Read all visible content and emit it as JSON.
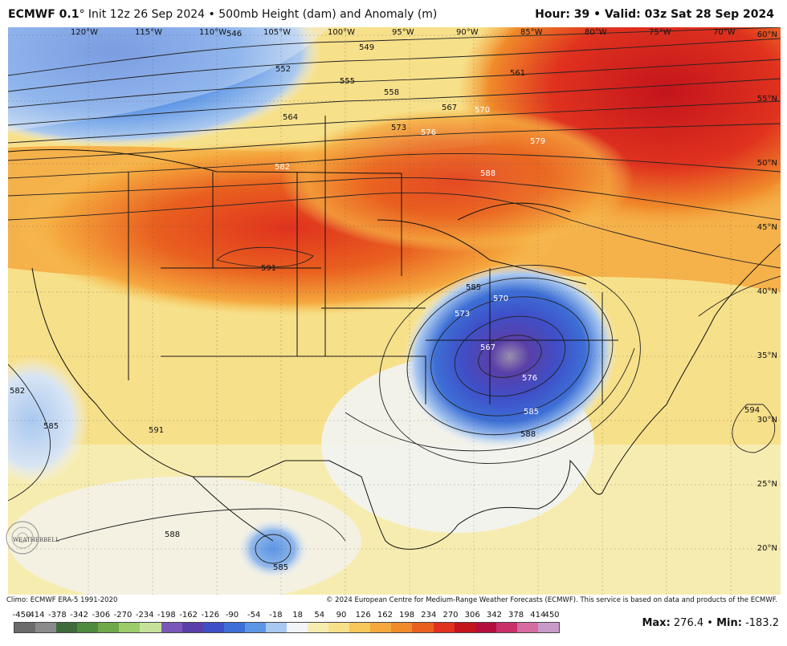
{
  "header": {
    "model": "ECMWF 0.1",
    "degree": "°",
    "init": "Init 12z 26 Sep 2024",
    "separator": "•",
    "product": "500mb Height (dam) and Anomaly (m)",
    "hour_label": "Hour:",
    "hour_value": "39",
    "valid_label": "Valid:",
    "valid_value": "03z Sat 28 Sep 2024"
  },
  "map": {
    "longitude_labels": [
      "120°W",
      "115°W",
      "110°W",
      "105°W",
      "100°W",
      "95°W",
      "90°W",
      "85°W",
      "80°W",
      "75°W",
      "70°W"
    ],
    "latitude_labels": [
      "60°N",
      "55°N",
      "50°N",
      "45°N",
      "40°N",
      "35°N",
      "30°N",
      "25°N",
      "20°N"
    ],
    "contour_labels": [
      "546",
      "549",
      "552",
      "555",
      "558",
      "561",
      "564",
      "567",
      "570",
      "573",
      "576",
      "579",
      "582",
      "585",
      "588",
      "591",
      "594",
      "570",
      "567",
      "573",
      "576",
      "585",
      "588",
      "582",
      "585",
      "591",
      "588",
      "585"
    ],
    "colors": {
      "deep_low": "#5a3fa8",
      "low": "#3d6fd6",
      "light_low": "#a9c8ef",
      "neutral": "#f2f4f8",
      "pale_warm": "#f7e79b",
      "warm": "#f6c75a",
      "orange": "#f08a2a",
      "red": "#e0321e",
      "deep_red": "#c4141c"
    }
  },
  "logo": {
    "text": "WEATHERBELL"
  },
  "footer": {
    "climo": "Climo: ECMWF ERA-5 1991-2020",
    "copyright": "© 2024 European Centre for Medium-Range Weather Forecasts (ECMWF). This service is based on data and products of the ECMWF.",
    "max_label": "Max:",
    "max_value": "276.4",
    "min_label": "Min:",
    "min_value": "-183.2",
    "colorbar_ticks": [
      "-450",
      "-414",
      "-378",
      "-342",
      "-306",
      "-270",
      "-234",
      "-198",
      "-162",
      "-126",
      "-90",
      "-54",
      "-18",
      "18",
      "54",
      "90",
      "126",
      "162",
      "198",
      "234",
      "270",
      "306",
      "342",
      "378",
      "414",
      "450"
    ],
    "colorbar_colors": [
      "#6b6b6b",
      "#8a8a8a",
      "#3f6b3a",
      "#4f8a3f",
      "#6fa84a",
      "#9ccc6a",
      "#c6e29a",
      "#7a58b8",
      "#5a3fa8",
      "#3f4fc8",
      "#3d6fd6",
      "#5d95e6",
      "#a9c8ef",
      "#f2f4f8",
      "#f7ecb0",
      "#f7e08a",
      "#f6c75a",
      "#f5a83e",
      "#f08a2a",
      "#e9601f",
      "#e0321e",
      "#c4141c",
      "#b40f3c",
      "#c8306a",
      "#d46ca0",
      "#c89ac8"
    ]
  }
}
